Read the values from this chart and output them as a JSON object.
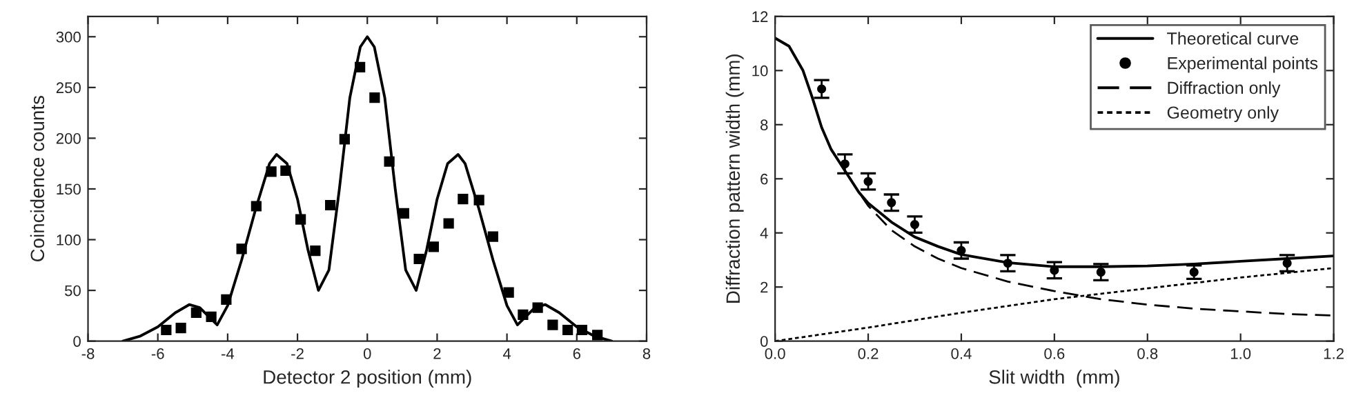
{
  "chart_data": [
    {
      "type": "scatter",
      "xlabel": "Detector 2 position (mm)",
      "ylabel": "Coincidence counts",
      "xlim": [
        -8,
        8
      ],
      "xticks": [
        -8,
        -6,
        -4,
        -2,
        0,
        2,
        4,
        6,
        8
      ],
      "ylim": [
        0,
        320
      ],
      "yticks": [
        0,
        50,
        100,
        150,
        200,
        250,
        300
      ],
      "grid": false,
      "legend": false,
      "series": [
        {
          "marker": "square",
          "color": "#000000",
          "x": [
            -5.76,
            -5.34,
            -4.9,
            -4.47,
            -4.04,
            -3.6,
            -3.18,
            -2.75,
            -2.34,
            -1.91,
            -1.49,
            -1.06,
            -0.65,
            -0.21,
            0.21,
            0.63,
            1.05,
            1.48,
            1.9,
            2.33,
            2.74,
            3.2,
            3.6,
            4.05,
            4.46,
            4.88,
            5.31,
            5.74,
            6.15,
            6.59
          ],
          "values": [
            11,
            13,
            28,
            24,
            41,
            91,
            133,
            167,
            168,
            120,
            89,
            134,
            199,
            270,
            240,
            177,
            126,
            81,
            93,
            116,
            140,
            139,
            103,
            48,
            26,
            33,
            16,
            11,
            11,
            6
          ]
        },
        {
          "type": "line",
          "marker": "none",
          "line_style": "solid",
          "color": "#000000",
          "x": [
            -7,
            -6.5,
            -6,
            -5.5,
            -5.1,
            -4.8,
            -4.3,
            -4,
            -3.6,
            -3.2,
            -2.8,
            -2.6,
            -2.3,
            -2,
            -1.7,
            -1.4,
            -1.1,
            -0.8,
            -0.5,
            -0.2,
            0,
            0.2,
            0.5,
            0.8,
            1.1,
            1.4,
            1.7,
            2,
            2.3,
            2.6,
            2.8,
            3.2,
            3.6,
            4,
            4.3,
            4.8,
            5.1,
            5.5,
            6,
            6.5,
            7
          ],
          "values": [
            0,
            5,
            14,
            28,
            36,
            33,
            16,
            35,
            80,
            130,
            175,
            184,
            175,
            140,
            90,
            50,
            70,
            150,
            240,
            290,
            300,
            290,
            240,
            150,
            70,
            50,
            90,
            140,
            175,
            184,
            175,
            130,
            80,
            35,
            16,
            33,
            36,
            28,
            14,
            5,
            0
          ]
        }
      ]
    },
    {
      "type": "line",
      "xlabel": "Slit width  (mm)",
      "ylabel": "Diffraction pattern width (mm)",
      "xlim": [
        0,
        1.2
      ],
      "xticks": [
        {
          "value": 0,
          "label": "0.0"
        },
        {
          "value": 0.2,
          "label": "0.2"
        },
        {
          "value": 0.4,
          "label": "0.4"
        },
        {
          "value": 0.6,
          "label": "0.6"
        },
        {
          "value": 0.8,
          "label": "0.8"
        },
        {
          "value": 1.0,
          "label": "1.0"
        },
        {
          "value": 1.2,
          "label": "1.2"
        }
      ],
      "ylim": [
        0,
        12
      ],
      "yticks": [
        0,
        2,
        4,
        6,
        8,
        10,
        12
      ],
      "grid": false,
      "legend": "top right",
      "series": [
        {
          "name": "Theoretical curve",
          "marker": "none",
          "line_style": "solid",
          "color": "#000000",
          "x": [
            0,
            0.03,
            0.06,
            0.08,
            0.1,
            0.12,
            0.15,
            0.18,
            0.2,
            0.25,
            0.3,
            0.35,
            0.4,
            0.5,
            0.6,
            0.7,
            0.8,
            0.9,
            1.0,
            1.1,
            1.2
          ],
          "values": [
            11.2,
            10.9,
            10.0,
            9.0,
            7.9,
            7.1,
            6.3,
            5.5,
            5.1,
            4.4,
            3.85,
            3.5,
            3.2,
            2.9,
            2.75,
            2.75,
            2.78,
            2.85,
            2.95,
            3.05,
            3.15
          ]
        },
        {
          "name": "Experimental points",
          "type": "scatter",
          "marker": "circle",
          "color": "#000000",
          "x": [
            0.1,
            0.15,
            0.2,
            0.25,
            0.3,
            0.4,
            0.5,
            0.6,
            0.7,
            0.9,
            1.1
          ],
          "values": [
            9.32,
            6.55,
            5.9,
            5.12,
            4.31,
            3.35,
            2.88,
            2.62,
            2.55,
            2.55,
            2.88
          ],
          "errors": [
            0.33,
            0.35,
            0.3,
            0.3,
            0.3,
            0.3,
            0.3,
            0.3,
            0.3,
            0.25,
            0.3
          ]
        },
        {
          "name": "Diffraction only",
          "marker": "none",
          "line_style": "dashed",
          "color": "#000000",
          "x": [
            0,
            0.03,
            0.06,
            0.08,
            0.1,
            0.12,
            0.15,
            0.18,
            0.2,
            0.25,
            0.3,
            0.35,
            0.4,
            0.5,
            0.6,
            0.7,
            0.8,
            0.9,
            1.0,
            1.1,
            1.2
          ],
          "values": [
            11.2,
            10.9,
            10.0,
            9.0,
            7.9,
            7.1,
            6.3,
            5.5,
            5.0,
            4.1,
            3.5,
            3.05,
            2.7,
            2.2,
            1.85,
            1.55,
            1.35,
            1.2,
            1.1,
            1.0,
            0.95
          ]
        },
        {
          "name": "Geometry only",
          "marker": "none",
          "line_style": "dotted",
          "color": "#000000",
          "x": [
            0,
            0.2,
            0.4,
            0.6,
            0.8,
            1.0,
            1.2
          ],
          "values": [
            0,
            0.5,
            1.05,
            1.55,
            1.95,
            2.35,
            2.7
          ]
        }
      ]
    }
  ]
}
